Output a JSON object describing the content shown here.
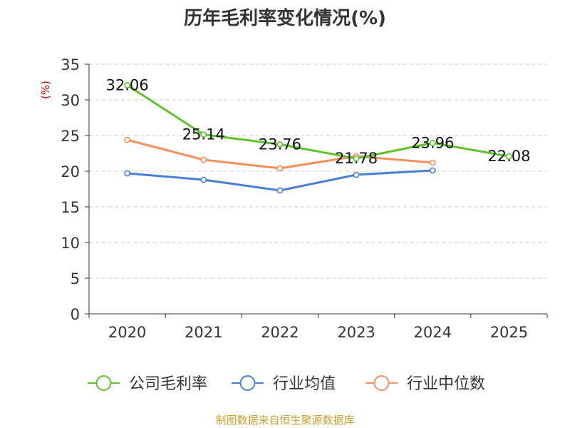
{
  "chart_data": {
    "type": "line",
    "title": "历年毛利率变化情况(%)",
    "ylabel": "(%)",
    "xlabel": "",
    "categories": [
      "2020",
      "2021",
      "2022",
      "2023",
      "2024",
      "2025"
    ],
    "ylim": [
      0,
      35
    ],
    "yticks": [
      0,
      5,
      10,
      15,
      20,
      25,
      30,
      35
    ],
    "grid": true,
    "legend_position": "bottom",
    "series": [
      {
        "name": "公司毛利率",
        "color": "#5cc427",
        "values": [
          32.06,
          25.14,
          23.76,
          21.78,
          23.96,
          22.08
        ],
        "labels": [
          "32.06",
          "25.14",
          "23.76",
          "21.78",
          "23.96",
          "22.08"
        ]
      },
      {
        "name": "行业均值",
        "color": "#4a7fd8",
        "values": [
          19.7,
          18.8,
          17.3,
          19.5,
          20.1,
          null
        ]
      },
      {
        "name": "行业中位数",
        "color": "#f68f5b",
        "values": [
          24.4,
          21.6,
          20.4,
          22.1,
          21.2,
          null
        ]
      }
    ],
    "source": "制图数据来自恒生聚源数据库"
  },
  "colors": {
    "title": "#333333",
    "axis": "#333333",
    "grid": "#cccccc",
    "unit": "#cc0000",
    "source": "#c8a030"
  }
}
